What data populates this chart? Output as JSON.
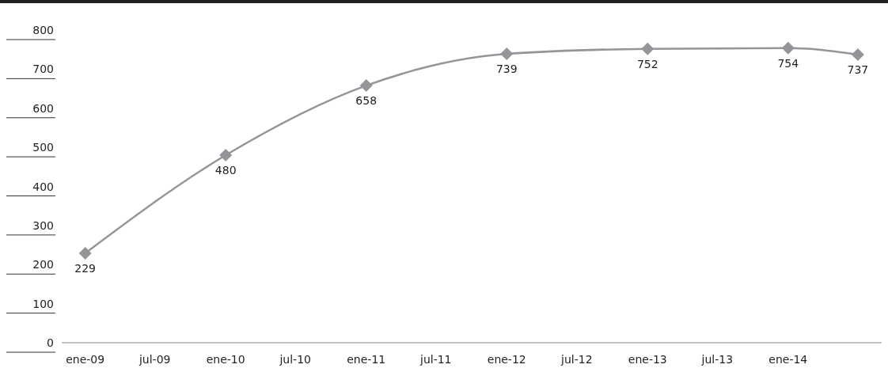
{
  "chart_data": {
    "type": "line",
    "x": [
      "2009-01",
      "2010-01",
      "2011-01",
      "2012-01",
      "2013-01",
      "2014-01",
      "2014-07"
    ],
    "series": [
      {
        "color": "#939598",
        "values": [
          229,
          480,
          658,
          739,
          752,
          754,
          737
        ]
      }
    ],
    "xticks": [
      {
        "value": "2009-01",
        "label": "ene-09"
      },
      {
        "value": "2009-07",
        "label": "jul-09"
      },
      {
        "value": "2010-01",
        "label": "ene-10"
      },
      {
        "value": "2010-07",
        "label": "jul-10"
      },
      {
        "value": "2011-01",
        "label": "ene-11"
      },
      {
        "value": "2011-07",
        "label": "jul-11"
      },
      {
        "value": "2012-01",
        "label": "ene-12"
      },
      {
        "value": "2012-07",
        "label": "jul-12"
      },
      {
        "value": "2013-01",
        "label": "ene-13"
      },
      {
        "value": "2013-07",
        "label": "jul-13"
      },
      {
        "value": "2014-01",
        "label": "ene-14"
      }
    ],
    "xlim": [
      "2008-11",
      "2014-09"
    ],
    "ylim": [
      0,
      800
    ],
    "yticks": [
      0,
      100,
      200,
      300,
      400,
      500,
      600,
      700,
      800
    ],
    "grid": false,
    "legend": false,
    "marker": "diamond",
    "line_style": "solid",
    "data_labels": true
  }
}
